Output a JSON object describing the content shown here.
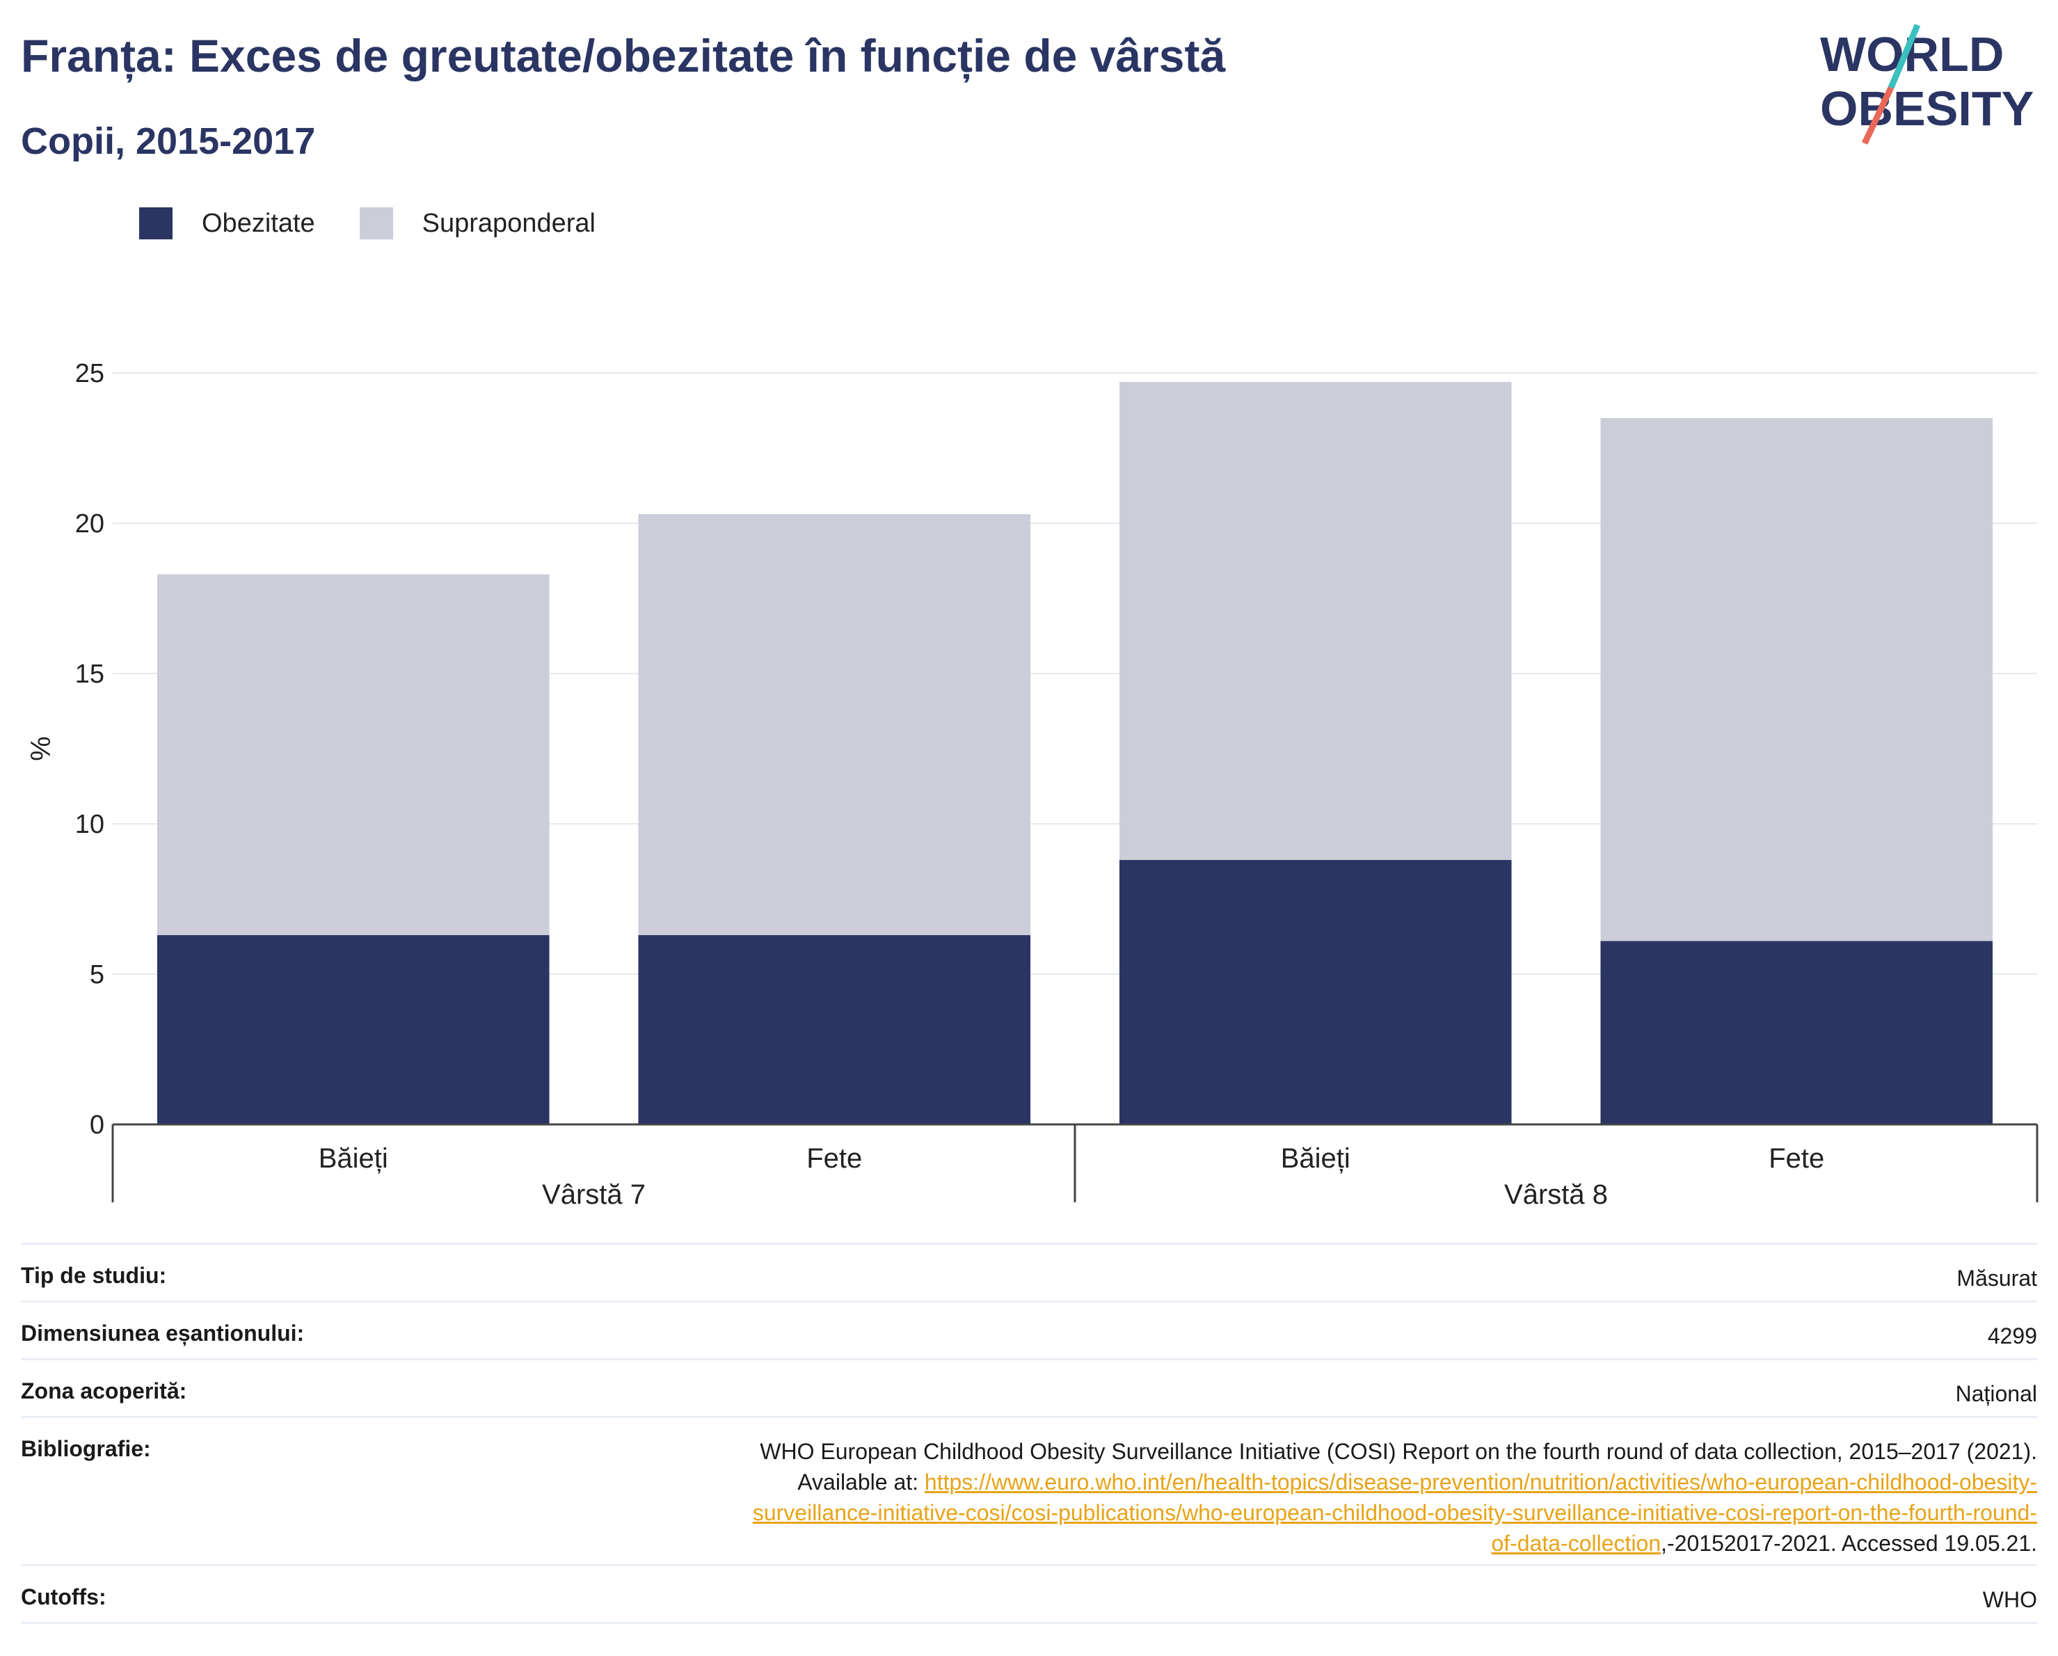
{
  "title": "Franța: Exces de greutate/obezitate în funcție de vârstă",
  "subtitle": "Copii, 2015-2017",
  "logo": {
    "line1": "WORLD",
    "line2": "OBESITY"
  },
  "colors": {
    "obezitate": "#2a3563",
    "supraponderal": "#cbcdd8",
    "title": "#2a3563",
    "link": "#e8a317"
  },
  "chart_data": {
    "type": "bar",
    "stacked": true,
    "ylabel": "%",
    "ylim": [
      0,
      25
    ],
    "yticks": [
      0,
      5,
      10,
      15,
      20,
      25
    ],
    "grid": true,
    "legend_position": "top-left",
    "categories": [
      "Băieți",
      "Fete",
      "Băieți",
      "Fete"
    ],
    "groups": [
      {
        "label": "Vârstă 7",
        "categories": [
          "Băieți",
          "Fete"
        ]
      },
      {
        "label": "Vârstă 8",
        "categories": [
          "Băieți",
          "Fete"
        ]
      }
    ],
    "series": [
      {
        "name": "Obezitate",
        "color": "#2a3563",
        "values": [
          6.3,
          6.3,
          8.8,
          6.1
        ]
      },
      {
        "name": "Supraponderal",
        "color": "#cbcdd8",
        "values": [
          12.0,
          14.0,
          15.9,
          17.4
        ]
      }
    ]
  },
  "info": [
    {
      "label": "Tip de studiu:",
      "value": "Măsurat"
    },
    {
      "label": "Dimensiunea eșantionului:",
      "value": "4299"
    },
    {
      "label": "Zona acoperită:",
      "value": "Național"
    },
    {
      "label": "Bibliografie:",
      "value_line1": "WHO European Childhood Obesity Surveillance Initiative (COSI) Report on the fourth round of data collection, 2015–2017 (2021).",
      "value_prefix": "Available at: ",
      "link1": "https://www.euro.who.int/en/health-topics/disease-prevention/nutrition/activities/who-european-childhood-obesity-",
      "link2": "surveillance-initiative-cosi/cosi-publications/who-european-childhood-obesity-surveillance-initiative-cosi-report-on-the-fourth-round-",
      "link3": "of-data-collection",
      "value_suffix": ",-20152017-2021. Accessed 19.05.21."
    },
    {
      "label": "Cutoffs:",
      "value": "WHO"
    }
  ]
}
